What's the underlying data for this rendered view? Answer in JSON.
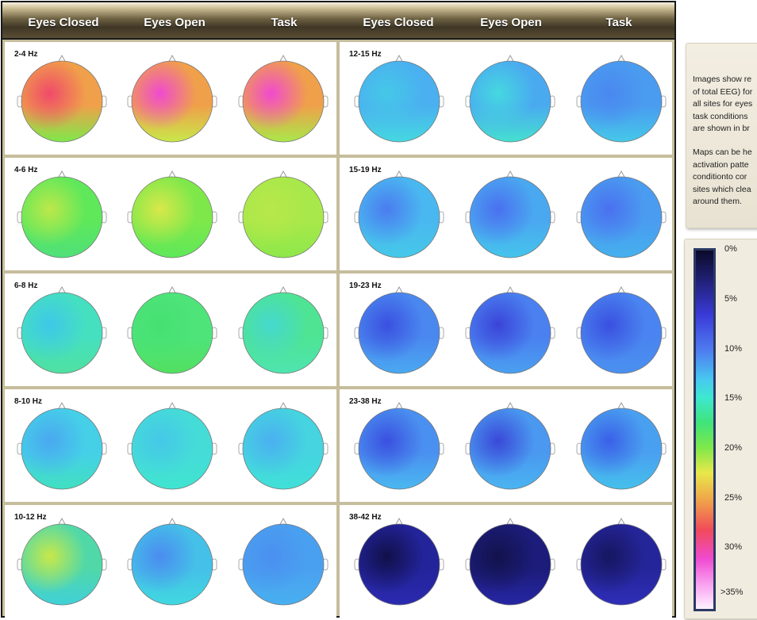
{
  "conditions": [
    "Eyes Closed",
    "Eyes Open",
    "Task"
  ],
  "left_bands": [
    {
      "label": "2-4 Hz",
      "colors": [
        "#f0a04a",
        "#f0a04a",
        "#f0a04a"
      ],
      "accents": [
        "#f04a6a",
        "#f04ad0",
        "#f04ad0"
      ],
      "lows": [
        "#7ee84a",
        "#c8e84a",
        "#a8e84a"
      ]
    },
    {
      "label": "4-6 Hz",
      "colors": [
        "#5ee85a",
        "#7ee84a",
        "#a8e84a"
      ],
      "accents": [
        "#bde84a",
        "#d8e84a",
        "#b8e84a"
      ],
      "lows": [
        "#4fe07a",
        "#5ee85a",
        "#8ee84a"
      ]
    },
    {
      "label": "6-8 Hz",
      "colors": [
        "#45e0c0",
        "#4ee47a",
        "#4ee494"
      ],
      "accents": [
        "#3ec8e8",
        "#45e070",
        "#45d8d0"
      ],
      "lows": [
        "#4fe0a0",
        "#52e060",
        "#4fe4b0"
      ]
    },
    {
      "label": "8-10 Hz",
      "colors": [
        "#45d0e8",
        "#45dcd8",
        "#45d4e0"
      ],
      "accents": [
        "#4aa8f0",
        "#45c8e8",
        "#4ab0f0"
      ],
      "lows": [
        "#40e0c0",
        "#40e4d0",
        "#40e0d8"
      ]
    },
    {
      "label": "10-12 Hz",
      "colors": [
        "#50d8a8",
        "#45c0e8",
        "#4aa0f0"
      ],
      "accents": [
        "#c8e84a",
        "#4a8cf0",
        "#4a90f0"
      ],
      "lows": [
        "#40d0d8",
        "#40d8e0",
        "#48b0f0"
      ]
    }
  ],
  "right_bands": [
    {
      "label": "12-15 Hz",
      "colors": [
        "#4ab0f0",
        "#4aaaf0",
        "#4a9cf0"
      ],
      "accents": [
        "#45c8e8",
        "#45d8e0",
        "#4a88f0"
      ],
      "lows": [
        "#45d8e0",
        "#45e0d0",
        "#45c8e8"
      ]
    },
    {
      "label": "15-19 Hz",
      "colors": [
        "#4ab8f0",
        "#4aa8f0",
        "#4a9cf0"
      ],
      "accents": [
        "#4a7cf0",
        "#4a70f0",
        "#4a70f0"
      ],
      "lows": [
        "#45c8e8",
        "#45c4ec",
        "#45b0ee"
      ]
    },
    {
      "label": "19-23 Hz",
      "colors": [
        "#4a88f0",
        "#4a80f0",
        "#4a84f0"
      ],
      "accents": [
        "#3a50e0",
        "#3a44d8",
        "#3a50e0"
      ],
      "lows": [
        "#4aa8f0",
        "#4aa0f0",
        "#4a90f0"
      ]
    },
    {
      "label": "23-38 Hz",
      "colors": [
        "#4a90f0",
        "#4a98f0",
        "#4aa0f0"
      ],
      "accents": [
        "#3a50e0",
        "#3a48d8",
        "#3a60e8"
      ],
      "lows": [
        "#4ab8f0",
        "#4ab4f0",
        "#45c0ec"
      ]
    },
    {
      "label": "38-42 Hz",
      "colors": [
        "#23239a",
        "#1c1c7a",
        "#25259a"
      ],
      "accents": [
        "#10104a",
        "#12124c",
        "#161660"
      ],
      "lows": [
        "#2a2ab0",
        "#2626a4",
        "#2e2eb8"
      ]
    }
  ],
  "info": {
    "paragraph1": "Images show re\nof total EEG) for\nall sites for eyes\ntask conditions\nare shown in br",
    "paragraph2": "Maps can be he\nactivation patte\nconditionto cor\nsites which clea\naround them."
  },
  "legend": {
    "ticks": [
      "0%",
      "5%",
      "10%",
      "15%",
      "20%",
      "25%",
      "30%",
      ">35%"
    ]
  }
}
